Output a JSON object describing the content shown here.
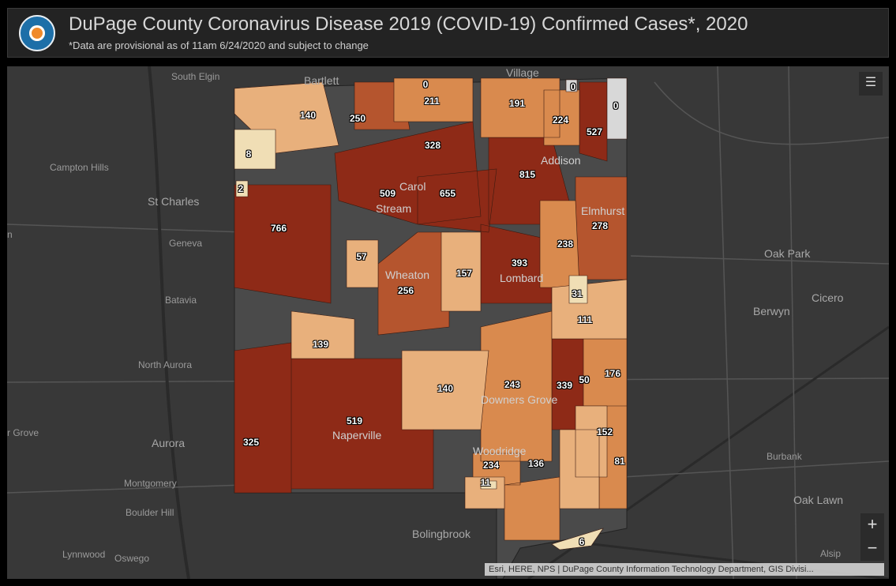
{
  "header": {
    "title": "DuPage County Coronavirus Disease 2019 (COVID-19) Confirmed Cases*, 2020",
    "subtitle": "*Data are provisional as of 11am 6/24/2020 and subject to change",
    "logo_icon": "county-health-seal"
  },
  "map": {
    "basemap": "dark-gray-canvas",
    "color_scale": {
      "none": "#d8d8d8",
      "very_low": "#f0deb5",
      "low": "#e8b07c",
      "medium": "#d98a4e",
      "high": "#b5552e",
      "very_high": "#8e2a17"
    },
    "places": [
      "South Elgin",
      "Bartlett",
      "Village",
      "Campton Hills",
      "St Charles",
      "Geneva",
      "Batavia",
      "North Aurora",
      "Aurora",
      "Montgomery",
      "Boulder Hill",
      "Lynnwood",
      "Oswego",
      "r Grove",
      "n",
      "Bolingbrook",
      "Oak Park",
      "Berwyn",
      "Cicero",
      "Burbank",
      "Oak Lawn",
      "Alsip"
    ],
    "onmap_places": [
      "Carol",
      "Stream",
      "Addison",
      "Elmhurst",
      "Wheaton",
      "Lombard",
      "Downers Grove",
      "Naperville",
      "Woodridge"
    ],
    "case_counts": [
      "0",
      "211",
      "191",
      "0",
      "0",
      "140",
      "250",
      "224",
      "527",
      "8",
      "328",
      "815",
      "2",
      "509",
      "655",
      "278",
      "766",
      "238",
      "57",
      "393",
      "157",
      "256",
      "31",
      "111",
      "139",
      "176",
      "140",
      "243",
      "339",
      "50",
      "519",
      "152",
      "325",
      "234",
      "136",
      "81",
      "11",
      "6"
    ],
    "layers_icon": "layers-icon",
    "zoom_in": "+",
    "zoom_out": "−",
    "attribution": "Esri, HERE, NPS | DuPage County Information Technology Department, GIS Divisi..."
  }
}
